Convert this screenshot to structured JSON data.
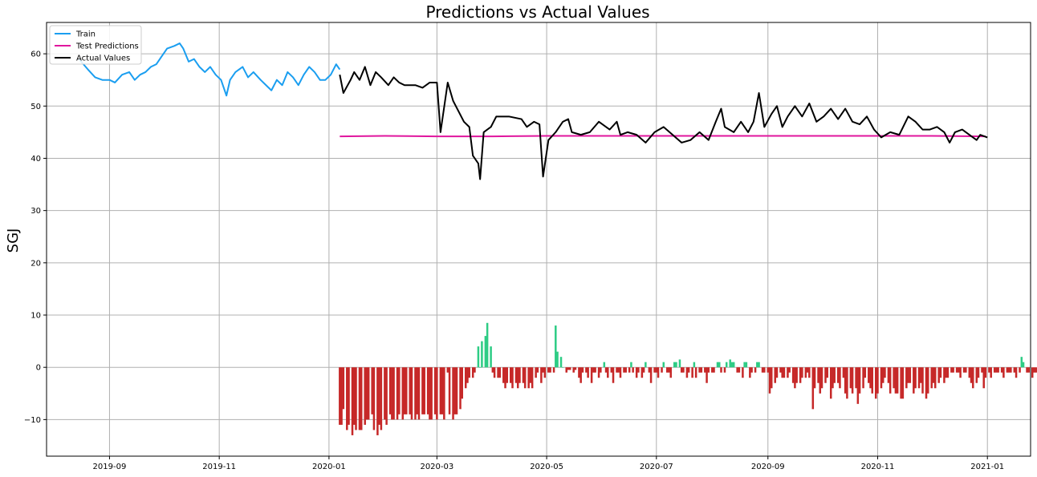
{
  "chart_data": {
    "type": "line",
    "title": "Predictions vs Actual Values",
    "xlabel": "",
    "ylabel": "SGJ",
    "x_axis": {
      "type": "date",
      "range": [
        "2019-07-28",
        "2021-01-25"
      ],
      "ticks": [
        "2019-09-01",
        "2019-11-01",
        "2020-01-01",
        "2020-03-01",
        "2020-05-01",
        "2020-07-01",
        "2020-09-01",
        "2020-11-01",
        "2021-01-01"
      ],
      "tick_labels": [
        "2019-09",
        "2019-11",
        "2020-01",
        "2020-03",
        "2020-05",
        "2020-07",
        "2020-09",
        "2020-11",
        "2021-01"
      ]
    },
    "y_axis": {
      "range": [
        -17,
        66
      ],
      "ticks": [
        -10,
        0,
        10,
        20,
        30,
        40,
        50,
        60
      ],
      "tick_labels": [
        "−10",
        "0",
        "10",
        "20",
        "30",
        "40",
        "50",
        "60"
      ]
    },
    "grid": true,
    "legend": {
      "placement": "top-left"
    },
    "series": [
      {
        "name": "Train",
        "color": "#1a9ef0",
        "points": [
          [
            "2019-08-15",
            59
          ],
          [
            "2019-08-20",
            57
          ],
          [
            "2019-08-24",
            55.5
          ],
          [
            "2019-08-28",
            55
          ],
          [
            "2019-09-01",
            55
          ],
          [
            "2019-09-04",
            54.5
          ],
          [
            "2019-09-08",
            56
          ],
          [
            "2019-09-12",
            56.5
          ],
          [
            "2019-09-15",
            55
          ],
          [
            "2019-09-18",
            56
          ],
          [
            "2019-09-21",
            56.5
          ],
          [
            "2019-09-24",
            57.5
          ],
          [
            "2019-09-27",
            58
          ],
          [
            "2019-09-30",
            59.5
          ],
          [
            "2019-10-03",
            61
          ],
          [
            "2019-10-07",
            61.5
          ],
          [
            "2019-10-10",
            62
          ],
          [
            "2019-10-12",
            61
          ],
          [
            "2019-10-15",
            58.5
          ],
          [
            "2019-10-18",
            59
          ],
          [
            "2019-10-21",
            57.5
          ],
          [
            "2019-10-24",
            56.5
          ],
          [
            "2019-10-27",
            57.5
          ],
          [
            "2019-10-30",
            56
          ],
          [
            "2019-11-02",
            55
          ],
          [
            "2019-11-05",
            52
          ],
          [
            "2019-11-07",
            55
          ],
          [
            "2019-11-10",
            56.5
          ],
          [
            "2019-11-14",
            57.5
          ],
          [
            "2019-11-17",
            55.5
          ],
          [
            "2019-11-20",
            56.5
          ],
          [
            "2019-11-24",
            55
          ],
          [
            "2019-11-27",
            54
          ],
          [
            "2019-11-30",
            53
          ],
          [
            "2019-12-03",
            55
          ],
          [
            "2019-12-06",
            54
          ],
          [
            "2019-12-09",
            56.5
          ],
          [
            "2019-12-12",
            55.5
          ],
          [
            "2019-12-15",
            54
          ],
          [
            "2019-12-18",
            56
          ],
          [
            "2019-12-21",
            57.5
          ],
          [
            "2019-12-24",
            56.5
          ],
          [
            "2019-12-27",
            55
          ],
          [
            "2019-12-30",
            55
          ],
          [
            "2020-01-02",
            56
          ],
          [
            "2020-01-05",
            58
          ],
          [
            "2020-01-07",
            57
          ]
        ]
      },
      {
        "name": "Test Predictions",
        "color": "#e0169e",
        "points": [
          [
            "2020-01-07",
            44.2
          ],
          [
            "2020-02-01",
            44.3
          ],
          [
            "2020-03-01",
            44.2
          ],
          [
            "2020-04-01",
            44.2
          ],
          [
            "2020-05-01",
            44.3
          ],
          [
            "2020-06-01",
            44.3
          ],
          [
            "2020-07-01",
            44.3
          ],
          [
            "2020-08-01",
            44.3
          ],
          [
            "2020-09-01",
            44.3
          ],
          [
            "2020-10-01",
            44.3
          ],
          [
            "2020-11-01",
            44.3
          ],
          [
            "2020-12-01",
            44.3
          ],
          [
            "2020-12-31",
            44.2
          ]
        ]
      },
      {
        "name": "Actual Values",
        "color": "#000000",
        "points": [
          [
            "2020-01-07",
            56
          ],
          [
            "2020-01-09",
            52.5
          ],
          [
            "2020-01-13",
            55
          ],
          [
            "2020-01-15",
            56.5
          ],
          [
            "2020-01-18",
            55
          ],
          [
            "2020-01-21",
            57.5
          ],
          [
            "2020-01-24",
            54
          ],
          [
            "2020-01-27",
            56.5
          ],
          [
            "2020-01-30",
            55.5
          ],
          [
            "2020-02-03",
            54
          ],
          [
            "2020-02-06",
            55.5
          ],
          [
            "2020-02-09",
            54.5
          ],
          [
            "2020-02-12",
            54
          ],
          [
            "2020-02-18",
            54
          ],
          [
            "2020-02-22",
            53.5
          ],
          [
            "2020-02-26",
            54.5
          ],
          [
            "2020-03-01",
            54.5
          ],
          [
            "2020-03-03",
            45
          ],
          [
            "2020-03-07",
            54.5
          ],
          [
            "2020-03-10",
            51
          ],
          [
            "2020-03-16",
            47
          ],
          [
            "2020-03-19",
            46
          ],
          [
            "2020-03-21",
            40.5
          ],
          [
            "2020-03-24",
            39
          ],
          [
            "2020-03-25",
            36
          ],
          [
            "2020-03-27",
            45
          ],
          [
            "2020-03-31",
            46
          ],
          [
            "2020-04-03",
            48
          ],
          [
            "2020-04-10",
            48
          ],
          [
            "2020-04-17",
            47.5
          ],
          [
            "2020-04-20",
            46
          ],
          [
            "2020-04-24",
            47
          ],
          [
            "2020-04-27",
            46.5
          ],
          [
            "2020-04-29",
            36.5
          ],
          [
            "2020-05-02",
            43.5
          ],
          [
            "2020-05-06",
            45
          ],
          [
            "2020-05-10",
            47
          ],
          [
            "2020-05-13",
            47.5
          ],
          [
            "2020-05-15",
            45
          ],
          [
            "2020-05-20",
            44.5
          ],
          [
            "2020-05-25",
            45
          ],
          [
            "2020-05-30",
            47
          ],
          [
            "2020-06-05",
            45.5
          ],
          [
            "2020-06-09",
            47
          ],
          [
            "2020-06-11",
            44.5
          ],
          [
            "2020-06-15",
            45
          ],
          [
            "2020-06-20",
            44.5
          ],
          [
            "2020-06-25",
            43
          ],
          [
            "2020-06-30",
            45
          ],
          [
            "2020-07-05",
            46
          ],
          [
            "2020-07-10",
            44.5
          ],
          [
            "2020-07-15",
            43
          ],
          [
            "2020-07-20",
            43.5
          ],
          [
            "2020-07-25",
            45
          ],
          [
            "2020-07-30",
            43.5
          ],
          [
            "2020-08-03",
            47
          ],
          [
            "2020-08-06",
            49.5
          ],
          [
            "2020-08-08",
            46
          ],
          [
            "2020-08-13",
            45
          ],
          [
            "2020-08-17",
            47
          ],
          [
            "2020-08-21",
            45
          ],
          [
            "2020-08-24",
            47
          ],
          [
            "2020-08-27",
            52.5
          ],
          [
            "2020-08-30",
            46
          ],
          [
            "2020-09-03",
            48.5
          ],
          [
            "2020-09-06",
            50
          ],
          [
            "2020-09-09",
            46
          ],
          [
            "2020-09-12",
            48
          ],
          [
            "2020-09-16",
            50
          ],
          [
            "2020-09-20",
            48
          ],
          [
            "2020-09-24",
            50.5
          ],
          [
            "2020-09-28",
            47
          ],
          [
            "2020-10-02",
            48
          ],
          [
            "2020-10-06",
            49.5
          ],
          [
            "2020-10-10",
            47.5
          ],
          [
            "2020-10-14",
            49.5
          ],
          [
            "2020-10-18",
            47
          ],
          [
            "2020-10-22",
            46.5
          ],
          [
            "2020-10-26",
            48
          ],
          [
            "2020-10-30",
            45.5
          ],
          [
            "2020-11-03",
            44
          ],
          [
            "2020-11-08",
            45
          ],
          [
            "2020-11-13",
            44.5
          ],
          [
            "2020-11-18",
            48
          ],
          [
            "2020-11-22",
            47
          ],
          [
            "2020-11-26",
            45.5
          ],
          [
            "2020-11-30",
            45.5
          ],
          [
            "2020-12-04",
            46
          ],
          [
            "2020-12-08",
            45
          ],
          [
            "2020-12-11",
            43
          ],
          [
            "2020-12-14",
            45
          ],
          [
            "2020-12-18",
            45.5
          ],
          [
            "2020-12-22",
            44.5
          ],
          [
            "2020-12-26",
            43.5
          ],
          [
            "2020-12-28",
            44.5
          ],
          [
            "2021-01-01",
            44
          ]
        ]
      }
    ],
    "residuals": {
      "positive_color": "#2ecc85",
      "negative_color": "#c62828",
      "start": "2020-01-07",
      "values": [
        -11,
        -11,
        -8,
        -12,
        -11,
        -13,
        -11,
        -12,
        -12,
        -12,
        -11,
        -10,
        -10,
        -9,
        -12,
        -13,
        -11,
        -12,
        -10,
        -11,
        -9,
        -10,
        -10,
        -10,
        -9,
        -10,
        -9,
        -9,
        -9,
        -10,
        -10,
        -9,
        -10,
        -9,
        -9,
        -9,
        -10,
        -10,
        -9,
        -10,
        -9,
        -9,
        -10,
        -1,
        -9,
        -10,
        -9,
        -9,
        -8,
        -6,
        -4,
        -3,
        -2,
        -2,
        -1,
        4,
        0,
        5,
        6,
        8.5,
        4,
        -1,
        -2,
        -2,
        -2,
        -3,
        -4,
        -3,
        -3,
        -4,
        -3,
        -4,
        -3,
        -3,
        -4,
        -4,
        -3,
        -4,
        -2,
        -1,
        -3,
        -1,
        -2,
        -1,
        -1,
        -1,
        8,
        3,
        2,
        0,
        -1,
        -0.5,
        -0.5,
        -1,
        -0.5,
        -2,
        -3,
        -1,
        -1,
        -2,
        -3,
        -1,
        -1,
        -2,
        -1,
        1,
        -1,
        -2,
        -1,
        -3,
        -1,
        -1,
        -2,
        -1,
        -1,
        -1,
        1,
        -1,
        -2,
        -1,
        -2,
        -1,
        1,
        -1,
        -3,
        -1,
        -1,
        -2,
        -1,
        1,
        -1,
        -1,
        -2,
        1,
        1,
        1.5,
        -1,
        -1,
        -2,
        -1,
        -2,
        1,
        -2,
        -1,
        -1,
        -1,
        -3,
        -1,
        -1,
        -1,
        1,
        1,
        -1,
        -1,
        1,
        1.5,
        1,
        1,
        -1,
        -1,
        -2,
        1,
        1,
        -2,
        -1,
        -1,
        1,
        1,
        -1,
        -1,
        -1,
        -5,
        -4,
        -3,
        -2,
        -1,
        -2,
        -2,
        -2,
        -1,
        -3,
        -4,
        -3,
        -3,
        -2,
        -2,
        -1,
        -2,
        -8,
        -4,
        -3,
        -5,
        -4,
        -3,
        -2,
        -6,
        -4,
        -3,
        -3,
        -4,
        -2,
        -5,
        -6,
        -4,
        -5,
        -4,
        -7,
        -5,
        -4,
        -2,
        -3,
        -4,
        -5,
        -6,
        -5,
        -4,
        -3,
        -2,
        -3,
        -5,
        -4,
        -5,
        -5,
        -6,
        -6,
        -4,
        -3,
        -3,
        -5,
        -4,
        -4,
        -3,
        -5,
        -6,
        -5,
        -4,
        -3,
        -4,
        -3,
        -2,
        -3,
        -2,
        -2,
        -1,
        -1,
        -1,
        -1,
        -2,
        -1,
        -1,
        -2,
        -3,
        -4,
        -3,
        -2,
        -1,
        -4,
        -2,
        -1,
        -2,
        -1,
        -1,
        -1,
        -1,
        -2,
        -1,
        -1,
        -1,
        -1,
        -2,
        -1,
        2,
        1,
        -1,
        -1,
        -2,
        -1,
        -1,
        -1,
        -1,
        -1,
        1.5,
        -1,
        -0.5,
        -0.5,
        -0.5,
        0.5,
        0.5,
        0.5
      ]
    }
  }
}
